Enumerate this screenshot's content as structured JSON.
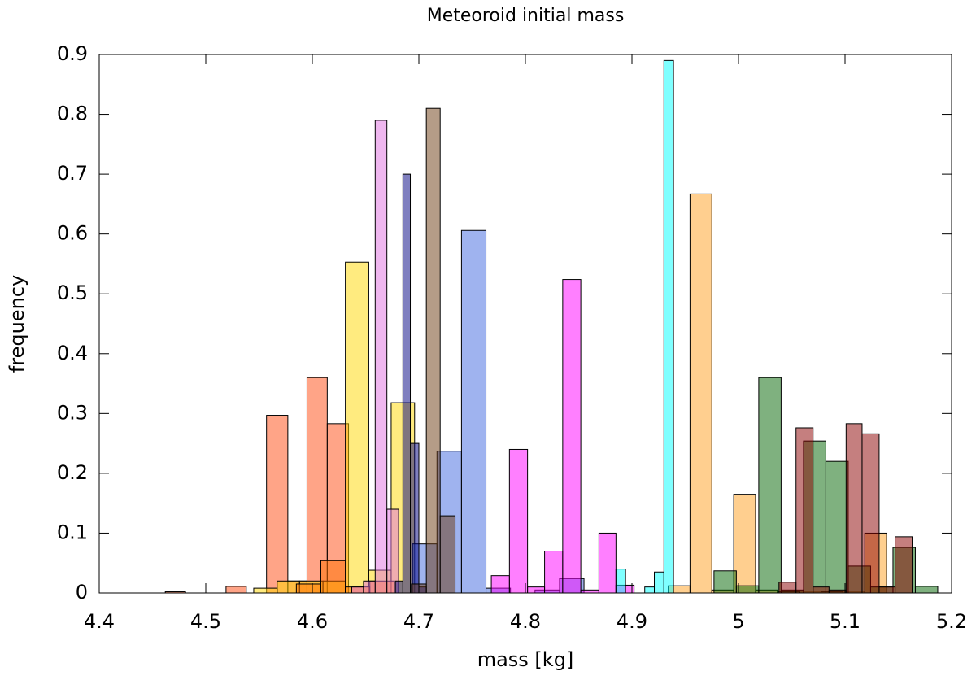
{
  "chart_data": {
    "type": "histogram",
    "title": "Meteoroid initial mass",
    "xlabel": "mass [kg]",
    "ylabel": "frequency",
    "xlim": [
      4.4,
      5.2
    ],
    "xticks": [
      4.4,
      4.5,
      4.6,
      4.7,
      4.8,
      4.9,
      5,
      5.1,
      5.2
    ],
    "ylim": [
      0,
      0.9
    ],
    "yticks": [
      0,
      0.1,
      0.2,
      0.3,
      0.4,
      0.5,
      0.6,
      0.7,
      0.8,
      0.9
    ],
    "opacity": 0.5,
    "series": [
      {
        "color": "#ff4a10",
        "bins": [
          4.462,
          4.481,
          4.5,
          4.519,
          4.538,
          4.557,
          4.577,
          4.595,
          4.614,
          4.634
        ],
        "values": [
          0.002,
          0,
          0,
          0.011,
          0,
          0.297,
          0.02,
          0.36,
          0.283
        ]
      },
      {
        "color": "#ffd800",
        "bins": [
          4.545,
          4.567,
          4.588,
          4.61,
          4.631,
          4.653,
          4.674,
          4.696
        ],
        "values": [
          0.008,
          0.02,
          0.02,
          0.02,
          0.553,
          0.038,
          0.318
        ]
      },
      {
        "color": "#4068e0",
        "bins": [
          4.694,
          4.717,
          4.74,
          4.763,
          4.786,
          4.809,
          4.832,
          4.855
        ],
        "values": [
          0.082,
          0.237,
          0.606,
          0.008,
          0,
          0.005,
          0.024
        ]
      },
      {
        "color": "#ff00ff",
        "bins": [
          4.768,
          4.785,
          4.802,
          4.818,
          4.835,
          4.852,
          4.869,
          4.885,
          4.902
        ],
        "values": [
          0.029,
          0.24,
          0.01,
          0.07,
          0.524,
          0.005,
          0.1,
          0.013
        ]
      },
      {
        "color": "#ffa020",
        "bins": [
          4.934,
          4.9545,
          4.975,
          4.9955,
          5.016,
          5.0365,
          5.057,
          5.0775,
          5.098,
          5.1185,
          5.139
        ],
        "values": [
          0.012,
          0.667,
          0.005,
          0.165,
          0.005,
          0.002,
          0.003,
          0.002,
          0.003,
          0.1
        ]
      },
      {
        "color": "#006400",
        "bins": [
          4.977,
          4.998,
          5.019,
          5.04,
          5.061,
          5.082,
          5.103,
          5.124,
          5.145,
          5.166,
          5.187
        ],
        "values": [
          0.037,
          0.012,
          0.36,
          0.005,
          0.254,
          0.22,
          0.045,
          0.01,
          0.076,
          0.011
        ]
      },
      {
        "color": "#8b0000",
        "bins": [
          5.038,
          5.054,
          5.07,
          5.085,
          5.101,
          5.116,
          5.132,
          5.147,
          5.163
        ],
        "values": [
          0.018,
          0.276,
          0.01,
          0.005,
          0.283,
          0.266,
          0.01,
          0.094
        ]
      },
      {
        "color": "#ff7000",
        "bins": [
          4.585,
          4.608,
          4.631,
          4.654,
          4.677
        ],
        "values": [
          0.015,
          0.054,
          0.01,
          0.02
        ]
      },
      {
        "color": "#e070e0",
        "bins": [
          4.637,
          4.648,
          4.659,
          4.67,
          4.681
        ],
        "values": [
          0.01,
          0.02,
          0.79,
          0.14
        ]
      },
      {
        "color": "#000080",
        "bins": [
          4.678,
          4.685,
          4.692,
          4.7,
          4.707
        ],
        "values": [
          0.02,
          0.7,
          0.25,
          0.01
        ]
      },
      {
        "color": "#6b3a10",
        "bins": [
          4.693,
          4.707,
          4.72,
          4.734
        ],
        "values": [
          0.015,
          0.81,
          0.129
        ]
      },
      {
        "color": "#00ffff",
        "bins": [
          4.885,
          4.894,
          4.903,
          4.912,
          4.921,
          4.93,
          4.939
        ],
        "values": [
          0.04,
          0,
          0,
          0.01,
          0.035,
          0.89
        ]
      }
    ]
  }
}
